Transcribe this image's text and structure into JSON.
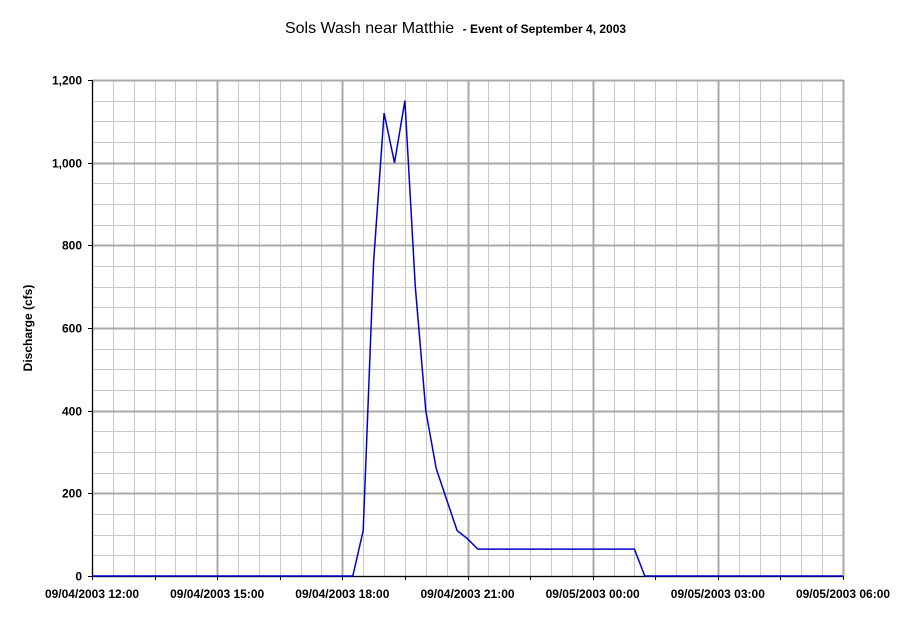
{
  "chart_data": {
    "type": "line",
    "title": "Sols Wash near Matthie",
    "subtitle": "- Event of September 4, 2003",
    "ylabel": "Discharge (cfs)",
    "xlabel": "",
    "ylim": [
      0,
      1200
    ],
    "yticks": [
      "0",
      "200",
      "400",
      "600",
      "800",
      "1,000",
      "1,200"
    ],
    "ytick_values": [
      0,
      200,
      400,
      600,
      800,
      1000,
      1200
    ],
    "xlim": [
      "09/04/2003 12:00",
      "09/05/2003 06:00"
    ],
    "xticks": [
      "09/04/2003 12:00",
      "09/04/2003 15:00",
      "09/04/2003 18:00",
      "09/04/2003 21:00",
      "09/05/2003 00:00",
      "09/05/2003 03:00",
      "09/05/2003 06:00"
    ],
    "grid": true,
    "line_color": "#0000cc",
    "series": [
      {
        "x": [
          "09/04/2003 12:00",
          "09/04/2003 18:15",
          "09/04/2003 18:30",
          "09/04/2003 18:45",
          "09/04/2003 19:00",
          "09/04/2003 19:15",
          "09/04/2003 19:30",
          "09/04/2003 19:45",
          "09/04/2003 20:00",
          "09/04/2003 20:15",
          "09/04/2003 20:30",
          "09/04/2003 20:45",
          "09/04/2003 21:00",
          "09/04/2003 21:15",
          "09/05/2003 01:00",
          "09/05/2003 01:15",
          "09/05/2003 06:00"
        ],
        "values": [
          0,
          0,
          110,
          760,
          1120,
          1000,
          1150,
          700,
          400,
          260,
          185,
          110,
          90,
          65,
          65,
          0,
          0
        ]
      }
    ]
  }
}
